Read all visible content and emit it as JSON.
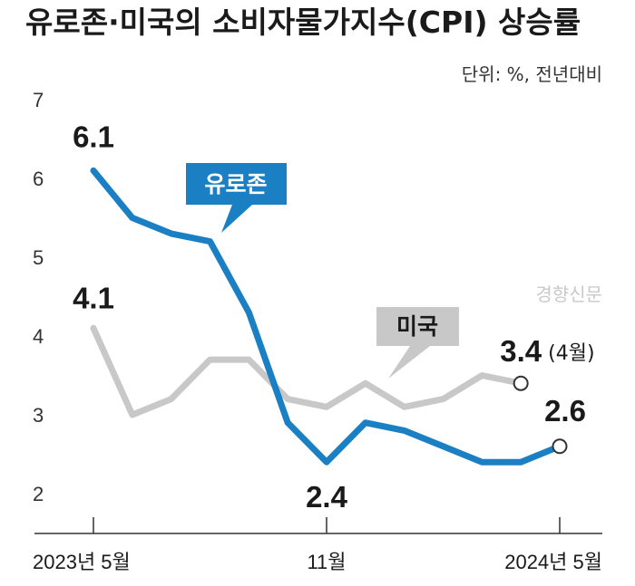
{
  "header": {
    "title": "유로존·미국의 소비자물가지수(CPI) 상승률",
    "unit": "단위: %, 전년대비"
  },
  "watermark": "경향신문",
  "colors": {
    "eurozone": "#1b7fc4",
    "us": "#c8c8c8",
    "us_tag_bg": "#c8c8c8",
    "eurozone_tag_bg": "#1b7fc4",
    "axis": "#333333"
  },
  "chart_data": {
    "type": "line",
    "title": "유로존·미국의 소비자물가지수(CPI) 상승률",
    "ylabel": "단위: %, 전년대비",
    "xlabel": "",
    "ylim": [
      2,
      7
    ],
    "yticks": [
      "2",
      "3",
      "4",
      "5",
      "6",
      "7"
    ],
    "x": [
      "2023-05",
      "2023-06",
      "2023-07",
      "2023-08",
      "2023-09",
      "2023-10",
      "2023-11",
      "2023-12",
      "2024-01",
      "2024-02",
      "2024-03",
      "2024-04",
      "2024-05"
    ],
    "xtick_labels": [
      {
        "index": 0,
        "label": "2023년 5월"
      },
      {
        "index": 6,
        "label": "11월"
      },
      {
        "index": 12,
        "label": "2024년 5월"
      }
    ],
    "series": [
      {
        "name": "유로존",
        "values": [
          6.1,
          5.5,
          5.3,
          5.2,
          4.3,
          2.9,
          2.4,
          2.9,
          2.8,
          2.6,
          2.4,
          2.4,
          2.6
        ],
        "labels": [
          {
            "index": 0,
            "text": "6.1"
          },
          {
            "index": 6,
            "text": "2.4"
          },
          {
            "index": 12,
            "text": "2.6"
          }
        ]
      },
      {
        "name": "미국",
        "values": [
          4.1,
          3.0,
          3.2,
          3.7,
          3.7,
          3.2,
          3.1,
          3.4,
          3.1,
          3.2,
          3.5,
          3.4,
          null
        ],
        "labels": [
          {
            "index": 0,
            "text": "4.1"
          },
          {
            "index": 11,
            "text": "3.4",
            "note": "(4월)"
          }
        ]
      }
    ]
  }
}
